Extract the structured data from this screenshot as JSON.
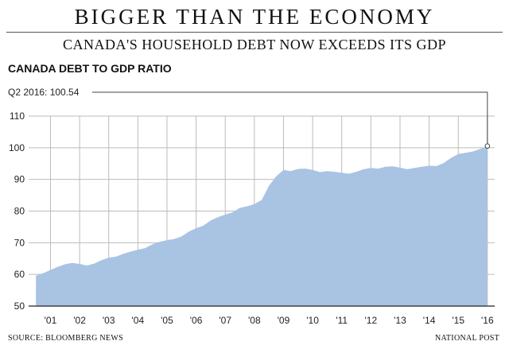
{
  "header": {
    "headline": "BIGGER THAN THE ECONOMY",
    "subheadline": "CANADA'S HOUSEHOLD DEBT NOW EXCEEDS ITS GDP"
  },
  "footer": {
    "source": "SOURCE: BLOOMBERG NEWS",
    "credit": "NATIONAL POST"
  },
  "colors": {
    "area_fill": "#a9c3e3",
    "grid": "#bbbbbb",
    "axis": "#222222"
  },
  "chart_data": {
    "type": "area",
    "title": "CANADA DEBT TO GDP RATIO",
    "xlabel": "",
    "ylabel": "",
    "ylim": [
      50,
      110
    ],
    "yticks": [
      50,
      60,
      70,
      80,
      90,
      100,
      110
    ],
    "xtick_labels": [
      "'01",
      "'02",
      "'03",
      "'04",
      "'05",
      "'06",
      "'07",
      "'08",
      "'09",
      "'10",
      "'11",
      "'12",
      "'13",
      "'14",
      "'15",
      "'16"
    ],
    "grid": true,
    "annotation": {
      "text": "Q2 2016: 100.54",
      "x": 2016.5,
      "y": 100.54
    },
    "series": [
      {
        "x": [
          2001.0,
          2001.25,
          2001.5,
          2001.75,
          2002.0,
          2002.25,
          2002.5,
          2002.75,
          2003.0,
          2003.25,
          2003.5,
          2003.75,
          2004.0,
          2004.25,
          2004.5,
          2004.75,
          2005.0,
          2005.25,
          2005.5,
          2005.75,
          2006.0,
          2006.25,
          2006.5,
          2006.75,
          2007.0,
          2007.25,
          2007.5,
          2007.75,
          2008.0,
          2008.25,
          2008.5,
          2008.75,
          2009.0,
          2009.25,
          2009.5,
          2009.75,
          2010.0,
          2010.25,
          2010.5,
          2010.75,
          2011.0,
          2011.25,
          2011.5,
          2011.75,
          2012.0,
          2012.25,
          2012.5,
          2012.75,
          2013.0,
          2013.25,
          2013.5,
          2013.75,
          2014.0,
          2014.25,
          2014.5,
          2014.75,
          2015.0,
          2015.25,
          2015.5,
          2015.75,
          2016.0,
          2016.25,
          2016.5
        ],
        "values": [
          59.6,
          60.4,
          61.4,
          62.4,
          63.2,
          63.6,
          63.3,
          62.8,
          63.4,
          64.5,
          65.3,
          65.6,
          66.5,
          67.2,
          67.8,
          68.3,
          69.5,
          70.3,
          70.8,
          71.2,
          72.0,
          73.5,
          74.6,
          75.4,
          77.0,
          78.1,
          78.9,
          79.6,
          81.0,
          81.5,
          82.2,
          83.5,
          88.0,
          91.0,
          93.0,
          92.6,
          93.3,
          93.4,
          93.0,
          92.3,
          92.6,
          92.4,
          92.1,
          91.8,
          92.4,
          93.2,
          93.6,
          93.4,
          94.0,
          94.1,
          93.7,
          93.2,
          93.6,
          94.0,
          94.3,
          94.2,
          95.2,
          96.8,
          98.0,
          98.4,
          98.8,
          99.6,
          100.54
        ]
      }
    ]
  }
}
